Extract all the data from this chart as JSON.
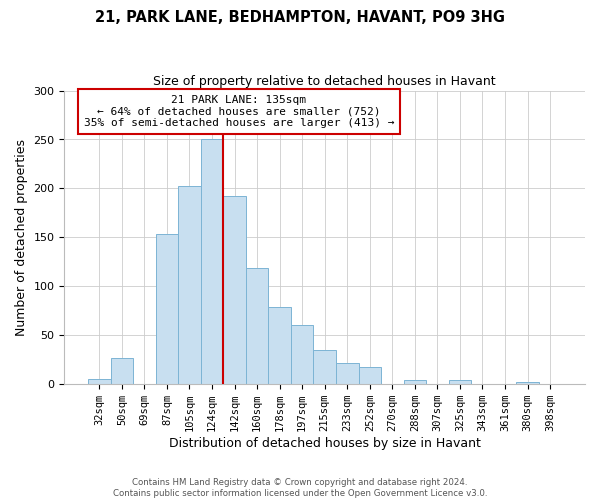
{
  "title": "21, PARK LANE, BEDHAMPTON, HAVANT, PO9 3HG",
  "subtitle": "Size of property relative to detached houses in Havant",
  "xlabel": "Distribution of detached houses by size in Havant",
  "ylabel": "Number of detached properties",
  "bar_labels": [
    "32sqm",
    "50sqm",
    "69sqm",
    "87sqm",
    "105sqm",
    "124sqm",
    "142sqm",
    "160sqm",
    "178sqm",
    "197sqm",
    "215sqm",
    "233sqm",
    "252sqm",
    "270sqm",
    "288sqm",
    "307sqm",
    "325sqm",
    "343sqm",
    "361sqm",
    "380sqm",
    "398sqm"
  ],
  "bar_values": [
    5,
    27,
    0,
    153,
    202,
    250,
    192,
    119,
    79,
    60,
    35,
    22,
    18,
    0,
    4,
    0,
    4,
    0,
    0,
    2,
    0
  ],
  "bar_color": "#c8dff0",
  "bar_edge_color": "#7cb4d4",
  "vline_x": 6.0,
  "vline_color": "#cc0000",
  "annotation_title": "21 PARK LANE: 135sqm",
  "annotation_line1": "← 64% of detached houses are smaller (752)",
  "annotation_line2": "35% of semi-detached houses are larger (413) →",
  "annotation_box_color": "#ffffff",
  "annotation_box_edge": "#cc0000",
  "ylim": [
    0,
    300
  ],
  "yticks": [
    0,
    50,
    100,
    150,
    200,
    250,
    300
  ],
  "footer1": "Contains HM Land Registry data © Crown copyright and database right 2024.",
  "footer2": "Contains public sector information licensed under the Open Government Licence v3.0."
}
